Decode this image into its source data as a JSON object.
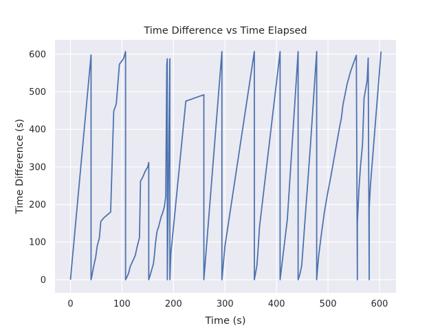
{
  "chart_data": {
    "type": "line",
    "title": "Time Difference vs Time Elapsed",
    "xlabel": "Time (s)",
    "ylabel": "Time Difference (s)",
    "xlim": [
      -30,
      632
    ],
    "ylim": [
      -35,
      638
    ],
    "xticks": [
      0,
      100,
      200,
      300,
      400,
      500,
      600
    ],
    "yticks": [
      0,
      100,
      200,
      300,
      400,
      500,
      600
    ],
    "grid": true,
    "series": [
      {
        "color": "#4c72b0",
        "x": [
          0,
          40,
          40,
          41,
          45,
          49,
          52,
          56,
          59,
          65,
          78,
          84,
          89,
          95,
          103,
          107,
          107,
          110,
          113,
          116,
          121,
          126,
          129,
          134,
          136,
          140,
          145,
          150,
          152,
          152,
          156,
          161,
          163,
          165,
          168,
          171,
          176,
          179,
          182,
          185,
          187,
          188,
          188,
          193,
          193,
          195,
          224,
          259,
          259,
          294,
          294,
          300,
          357,
          357,
          362,
          364,
          367,
          407,
          407,
          421,
          442,
          442,
          444,
          446,
          449,
          466,
          478,
          478,
          480,
          482,
          487,
          493,
          499,
          506,
          523,
          526,
          529,
          537,
          544,
          555,
          557,
          557,
          560,
          563,
          567,
          570,
          576,
          578,
          580,
          580,
          582,
          584,
          603
        ],
        "y": [
          0,
          598,
          0,
          6,
          35,
          60,
          90,
          110,
          155,
          165,
          180,
          448,
          468,
          573,
          588,
          607,
          0,
          8,
          18,
          35,
          50,
          65,
          85,
          112,
          262,
          272,
          288,
          300,
          312,
          0,
          18,
          42,
          65,
          96,
          128,
          140,
          167,
          178,
          192,
          221,
          571,
          588,
          0,
          588,
          0,
          70,
          475,
          492,
          0,
          607,
          0,
          90,
          607,
          0,
          38,
          75,
          140,
          607,
          0,
          160,
          607,
          0,
          8,
          18,
          38,
          360,
          607,
          0,
          35,
          65,
          120,
          180,
          228,
          278,
          410,
          430,
          465,
          520,
          555,
          597,
          0,
          150,
          240,
          300,
          360,
          483,
          530,
          590,
          0,
          190,
          243,
          280,
          607
        ]
      }
    ]
  }
}
